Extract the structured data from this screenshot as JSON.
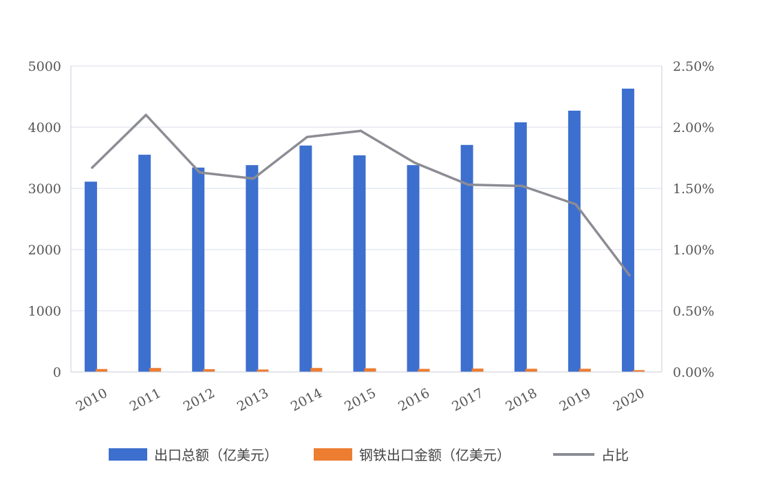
{
  "chart_data": {
    "type": "bar",
    "title": "",
    "xlabel": "",
    "ylabel": "",
    "categories": [
      "2010",
      "2011",
      "2012",
      "2013",
      "2014",
      "2015",
      "2016",
      "2017",
      "2018",
      "2019",
      "2020"
    ],
    "series": [
      {
        "name": "出口总额（亿美元）",
        "kind": "bar",
        "axis": "left",
        "color": "#3d6fcf",
        "values": [
          3110,
          3550,
          3340,
          3380,
          3700,
          3540,
          3380,
          3710,
          4080,
          4270,
          4630
        ]
      },
      {
        "name": "钢铁出口金额（亿美元）",
        "kind": "bar",
        "axis": "left",
        "color": "#ed7d31",
        "values": [
          48,
          65,
          45,
          40,
          65,
          60,
          50,
          55,
          52,
          52,
          30
        ]
      },
      {
        "name": "占比",
        "kind": "line",
        "axis": "right",
        "color": "#8c8c94",
        "values": [
          0.0167,
          0.021,
          0.0163,
          0.0158,
          0.0192,
          0.0197,
          0.0171,
          0.0153,
          0.0152,
          0.0137,
          0.0079
        ]
      }
    ],
    "ylim_left": [
      0,
      5000
    ],
    "yticks_left": [
      "0",
      "1000",
      "2000",
      "3000",
      "4000",
      "5000"
    ],
    "ylim_right": [
      0,
      0.025
    ],
    "yticks_right": [
      "0.00%",
      "0.50%",
      "1.00%",
      "1.50%",
      "2.00%",
      "2.50%"
    ],
    "grid": true,
    "legend_position": "bottom"
  }
}
